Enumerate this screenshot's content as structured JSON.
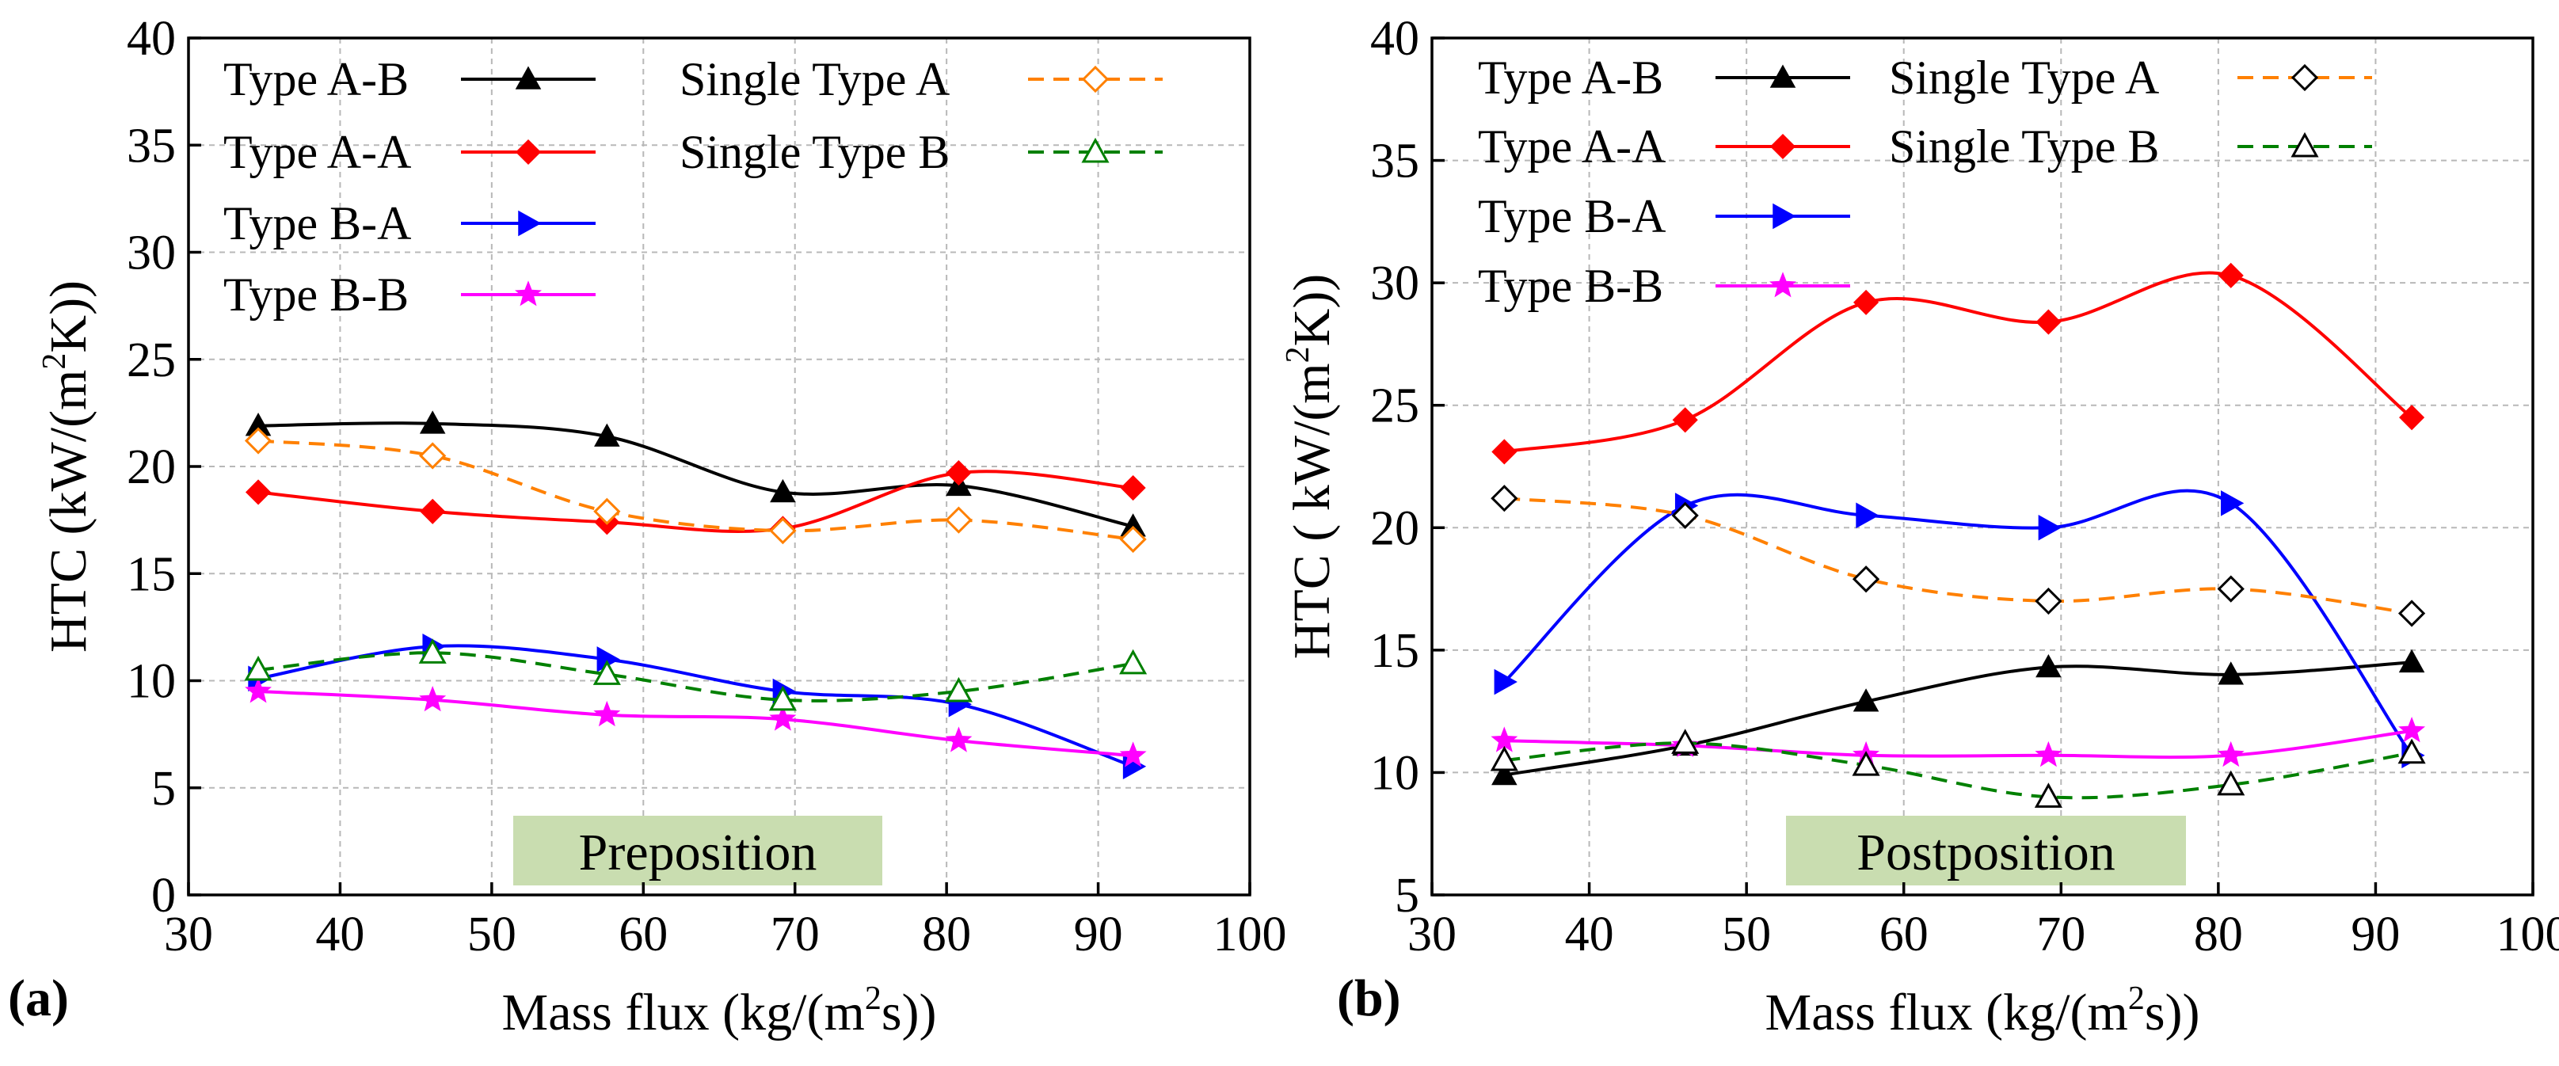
{
  "chart_data": [
    {
      "panel_label": "(a)",
      "type": "line",
      "title": "Preposition",
      "xlabel": "Mass flux (kg/(m",
      "xlabel_sup": "2",
      "xlabel_end": "s))",
      "ylabel": "HTC (kW/(m",
      "ylabel_sup": "2",
      "ylabel_end": "K))",
      "xlim": [
        30,
        100
      ],
      "ylim": [
        0,
        40
      ],
      "xticks": [
        "30",
        "40",
        "50",
        "60",
        "70",
        "80",
        "90",
        "100"
      ],
      "yticks": [
        "0",
        "5",
        "10",
        "15",
        "20",
        "25",
        "30",
        "35",
        "40"
      ],
      "grid": true,
      "legend_position": "top-left",
      "x": [
        34.6,
        46.1,
        57.6,
        69.2,
        80.8,
        92.3
      ],
      "series": [
        {
          "name": "Type A-B",
          "color": "#000000",
          "marker": "triangle",
          "filled": true,
          "dash": false,
          "values": [
            21.9,
            22.0,
            21.4,
            18.8,
            19.1,
            17.2
          ]
        },
        {
          "name": "Type A-A",
          "color": "#ff0000",
          "marker": "diamond",
          "filled": true,
          "dash": false,
          "values": [
            18.8,
            17.9,
            17.4,
            17.1,
            19.7,
            19.0
          ]
        },
        {
          "name": "Type B-A",
          "color": "#0000ff",
          "marker": "right-triangle",
          "filled": true,
          "dash": false,
          "values": [
            10.1,
            11.6,
            11.0,
            9.5,
            8.9,
            6.0
          ]
        },
        {
          "name": "Type B-B",
          "color": "#ff00ff",
          "marker": "star",
          "filled": true,
          "dash": false,
          "values": [
            9.5,
            9.1,
            8.4,
            8.2,
            7.2,
            6.5
          ]
        },
        {
          "name": "Single Type A",
          "color": "#ff8000",
          "marker": "diamond",
          "filled": false,
          "dash": true,
          "values": [
            21.2,
            20.5,
            17.9,
            17.0,
            17.5,
            16.6
          ]
        },
        {
          "name": "Single Type B",
          "color": "#008000",
          "marker": "triangle",
          "filled": false,
          "dash": true,
          "values": [
            10.5,
            11.3,
            10.3,
            9.1,
            9.5,
            10.8
          ]
        }
      ]
    },
    {
      "panel_label": "(b)",
      "type": "line",
      "title": "Postposition",
      "xlabel": "Mass flux (kg/(m",
      "xlabel_sup": "2",
      "xlabel_end": "s))",
      "ylabel": "HTC ( kW/(m",
      "ylabel_sup": "2",
      "ylabel_end": "K))",
      "xlim": [
        30,
        100
      ],
      "ylim": [
        5,
        40
      ],
      "xticks": [
        "30",
        "40",
        "50",
        "60",
        "70",
        "80",
        "90",
        "100"
      ],
      "yticks": [
        "5",
        "10",
        "15",
        "20",
        "25",
        "30",
        "35",
        "40"
      ],
      "grid": true,
      "legend_position": "top-left",
      "x": [
        34.6,
        46.1,
        57.6,
        69.2,
        80.8,
        92.3
      ],
      "series": [
        {
          "name": "Type A-B",
          "color": "#000000",
          "marker": "triangle",
          "filled": true,
          "dash": false,
          "values": [
            9.9,
            11.1,
            12.9,
            14.3,
            14.0,
            14.5
          ]
        },
        {
          "name": "Type A-A",
          "color": "#ff0000",
          "marker": "diamond",
          "filled": true,
          "dash": false,
          "values": [
            23.1,
            24.4,
            29.2,
            28.4,
            30.3,
            24.5
          ]
        },
        {
          "name": "Type B-A",
          "color": "#0000ff",
          "marker": "right-triangle",
          "filled": true,
          "dash": false,
          "values": [
            13.7,
            20.9,
            20.5,
            20.0,
            21.0,
            10.7
          ]
        },
        {
          "name": "Type B-B",
          "color": "#ff00ff",
          "marker": "star",
          "filled": true,
          "dash": false,
          "values": [
            11.3,
            11.1,
            10.7,
            10.7,
            10.7,
            11.7
          ]
        },
        {
          "name": "Single Type A",
          "color": "#000000",
          "linecolor": "#ff8000",
          "marker": "diamond",
          "filled": false,
          "dash": true,
          "values": [
            21.2,
            20.5,
            17.9,
            17.0,
            17.5,
            16.5
          ]
        },
        {
          "name": "Single Type B",
          "color": "#000000",
          "linecolor": "#008000",
          "marker": "triangle",
          "filled": false,
          "dash": true,
          "values": [
            10.5,
            11.2,
            10.3,
            9.0,
            9.5,
            10.8
          ]
        }
      ]
    }
  ]
}
